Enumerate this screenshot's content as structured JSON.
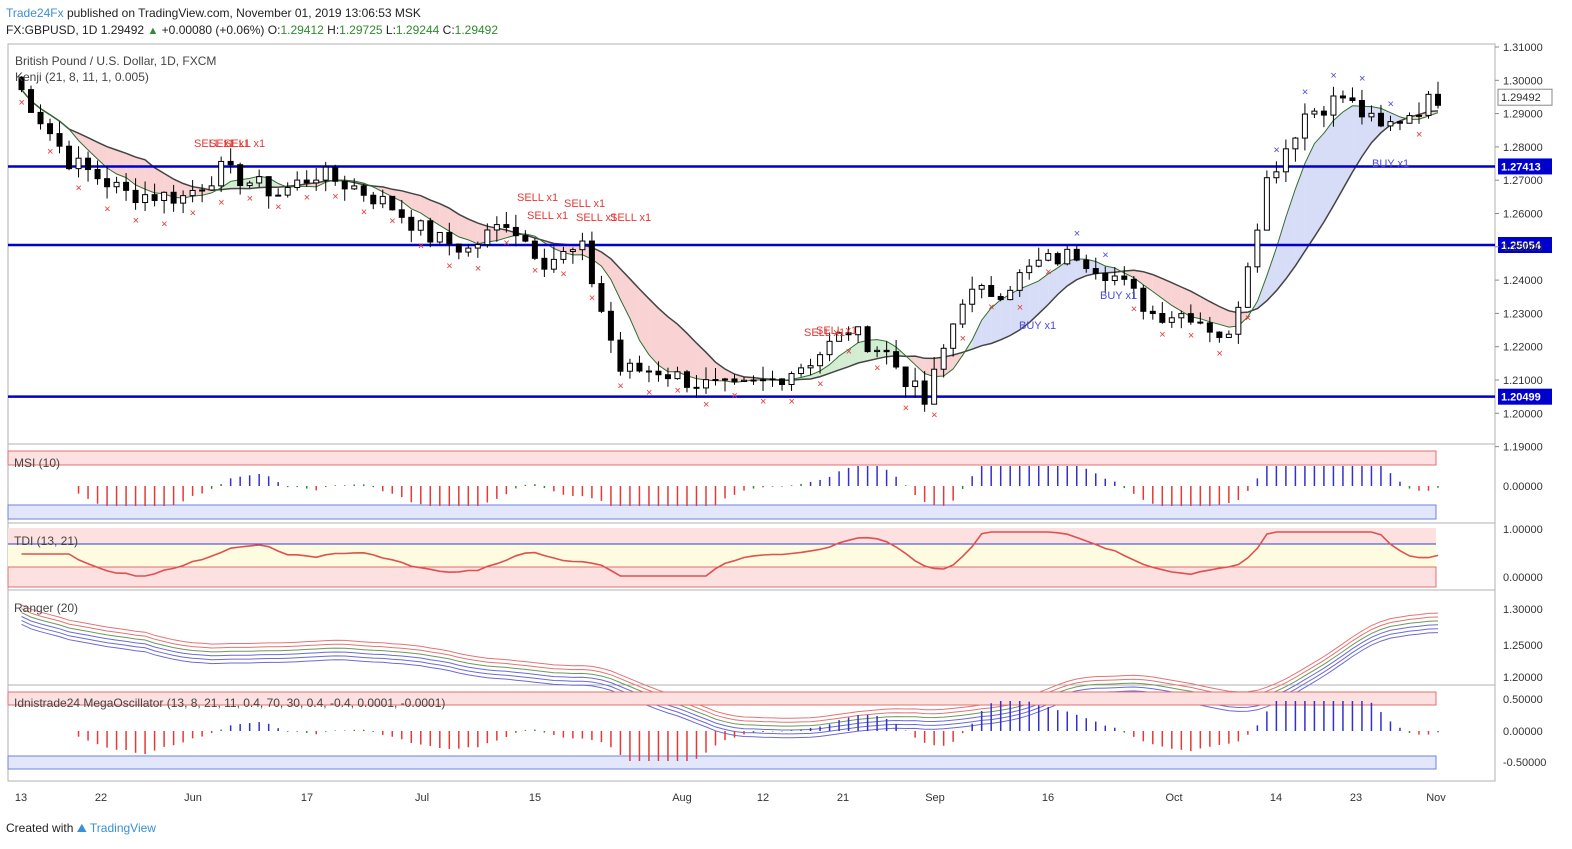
{
  "header": {
    "publisher": "Trade24Fx",
    "published_text": "published on TradingView.com, November 01, 2019 13:06:53 MSK",
    "symbol_line": "FX:GBPUSD, 1D",
    "last": "1.29492",
    "change": "+0.00080 (+0.06%)",
    "o_label": "O:",
    "o_value": "1.29412",
    "h_label": "H:",
    "h_value": "1.29725",
    "l_label": "L:",
    "l_value": "1.29244",
    "c_label": "C:",
    "c_value": "1.29492"
  },
  "main_pane": {
    "title": "British Pound / U.S. Dollar, 1D, FXCM",
    "indicator": "Kenji (21, 8, 11, 1, 0.005)"
  },
  "price_axis": {
    "ticks": [
      "1.31000",
      "1.30000",
      "1.29000",
      "1.28000",
      "1.27000",
      "1.26000",
      "1.25000",
      "1.24000",
      "1.23000",
      "1.22000",
      "1.21000",
      "1.20000",
      "1.19000"
    ],
    "current_price": "1.29492",
    "levels": [
      "1.27413",
      "1.25054",
      "1.20499"
    ]
  },
  "signals": {
    "sell": [
      "SELL x1",
      "SELL x1",
      "SELL x1",
      "SELL x1",
      "SELL x1",
      "SELL x1",
      "SELL x1",
      "SELL x1",
      "SELL x1",
      "SELL x1"
    ],
    "buy": [
      "BUY x1",
      "BUY x1",
      "BUY x1"
    ]
  },
  "panes": {
    "msi": {
      "label": "MSI (10)",
      "ticks": [
        "0.00000"
      ]
    },
    "tdi": {
      "label": "TDI (13, 21)",
      "ticks": [
        "1.00000",
        "0.00000"
      ]
    },
    "ranger": {
      "label": "Ranger (20)",
      "ticks": [
        "1.30000",
        "1.25000",
        "1.20000"
      ]
    },
    "mega": {
      "label": "Idnistrade24 MegaOscillator (13, 8, 21, 11, 0.4, 70, 30, 0.4, -0.4, 0.0001, -0.0001)",
      "ticks": [
        "0.50000",
        "0.00000",
        "-0.50000"
      ]
    }
  },
  "time_axis": [
    "13",
    "22",
    "Jun",
    "17",
    "Jul",
    "15",
    "Aug",
    "12",
    "21",
    "Sep",
    "16",
    "Oct",
    "14",
    "23",
    "Nov"
  ],
  "footer": {
    "created_with": "Created with",
    "brand": "TradingView"
  },
  "colors": {
    "bull_candle": "#ffffff",
    "bear_candle": "#000000",
    "level_line": "#0000cc",
    "sell": "#e53935",
    "buy": "#4a4ae0",
    "cloud_red": "#f8c8c8",
    "cloud_green": "#c8e8c8",
    "cloud_blue": "#cdd3f5"
  }
}
